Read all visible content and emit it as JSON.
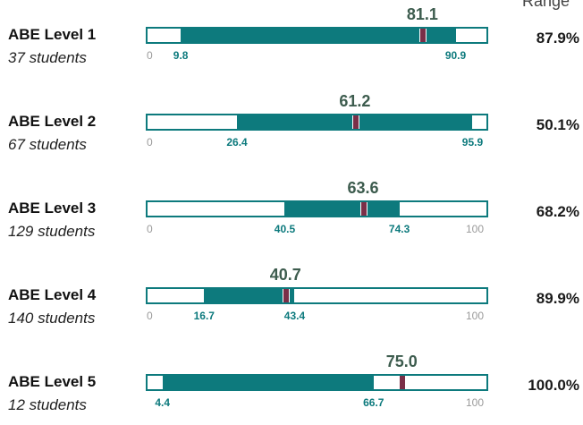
{
  "range_header": "Range",
  "chart_data": {
    "type": "bar",
    "axis": {
      "min": 0,
      "max": 100
    },
    "series": [
      {
        "level": "ABE Level 1",
        "students": "37 students",
        "low": 9.8,
        "high": 90.9,
        "low_label": "9.8",
        "high_label": "90.9",
        "mean": 81.1,
        "mean_label": "81.1",
        "range_pct": "87.9%",
        "axis_min_label": "0",
        "axis_max_label": ""
      },
      {
        "level": "ABE Level 2",
        "students": "67 students",
        "low": 26.4,
        "high": 95.9,
        "low_label": "26.4",
        "high_label": "95.9",
        "mean": 61.2,
        "mean_label": "61.2",
        "range_pct": "50.1%",
        "axis_min_label": "0",
        "axis_max_label": ""
      },
      {
        "level": "ABE Level 3",
        "students": "129 students",
        "low": 40.5,
        "high": 74.3,
        "low_label": "40.5",
        "high_label": "74.3",
        "mean": 63.6,
        "mean_label": "63.6",
        "range_pct": "68.2%",
        "axis_min_label": "0",
        "axis_max_label": "100"
      },
      {
        "level": "ABE Level 4",
        "students": "140 students",
        "low": 16.7,
        "high": 43.4,
        "low_label": "16.7",
        "high_label": "43.4",
        "mean": 40.7,
        "mean_label": "40.7",
        "range_pct": "89.9%",
        "axis_min_label": "0",
        "axis_max_label": "100"
      },
      {
        "level": "ABE Level 5",
        "students": "12 students",
        "low": 4.4,
        "high": 66.7,
        "low_label": "4.4",
        "high_label": "66.7",
        "mean": 75.0,
        "mean_label": "75.0",
        "range_pct": "100.0%",
        "axis_min_label": "",
        "axis_max_label": "100"
      }
    ]
  },
  "colors": {
    "fill": "#0d7a7d",
    "marker": "#7a2f48",
    "mean_text": "#3d5c4e"
  }
}
